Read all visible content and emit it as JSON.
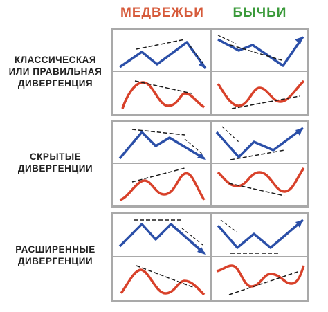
{
  "columns": {
    "bearish": "МЕДВЕЖЬИ",
    "bullish": "БЫЧЬИ"
  },
  "rows": [
    {
      "lines": [
        "КЛАССИЧЕСКАЯ",
        "ИЛИ ПРАВИЛЬНАЯ",
        "ДИВЕРГЕНЦИЯ"
      ]
    },
    {
      "lines": [
        "СКРЫТЫЕ",
        "ДИВЕРГЕНЦИИ"
      ]
    },
    {
      "lines": [
        "РАСШИРЕННЫЕ",
        "ДИВЕРГЕНЦИИ"
      ]
    }
  ],
  "colors": {
    "price_line": "#2b4fa8",
    "oscillator_line": "#d8412a",
    "trend_dash": "#1a1a1a",
    "bearish_title": "#d65a3a",
    "bullish_title": "#3a9a3a",
    "frame": "#a9a9a9"
  }
}
